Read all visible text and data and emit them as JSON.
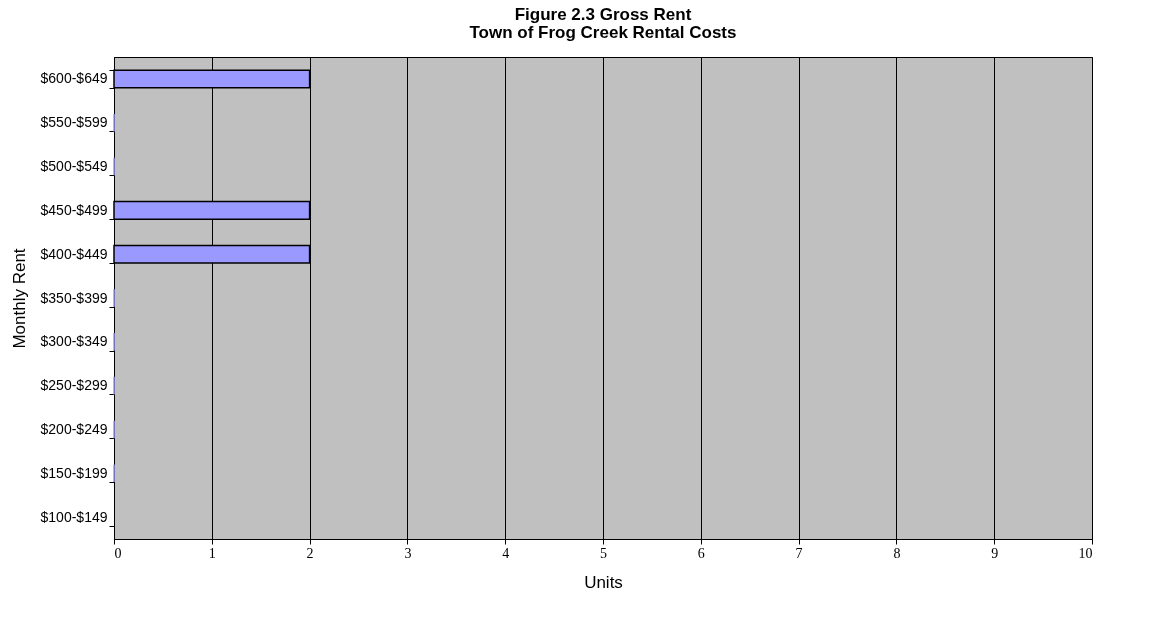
{
  "chart_data": {
    "type": "bar",
    "orientation": "horizontal",
    "title": "Figure 2.3 Gross Rent",
    "subtitle": "Town of Frog Creek Rental Costs",
    "xlabel": "Units",
    "ylabel": "Monthly Rent",
    "categories": [
      "$600-$649",
      "$550-$599",
      "$500-$549",
      "$450-$499",
      "$400-$449",
      "$350-$399",
      "$300-$349",
      "$250-$299",
      "$200-$249",
      "$150-$199",
      "$100-$149"
    ],
    "values": [
      2,
      0,
      0,
      2,
      2,
      0,
      0,
      0,
      0,
      0,
      null
    ],
    "color": "#9999ff",
    "xlim": [
      0,
      10
    ],
    "xticks": [
      0,
      1,
      2,
      3,
      4,
      5,
      6,
      7,
      8,
      9,
      10
    ],
    "grid": "x"
  }
}
